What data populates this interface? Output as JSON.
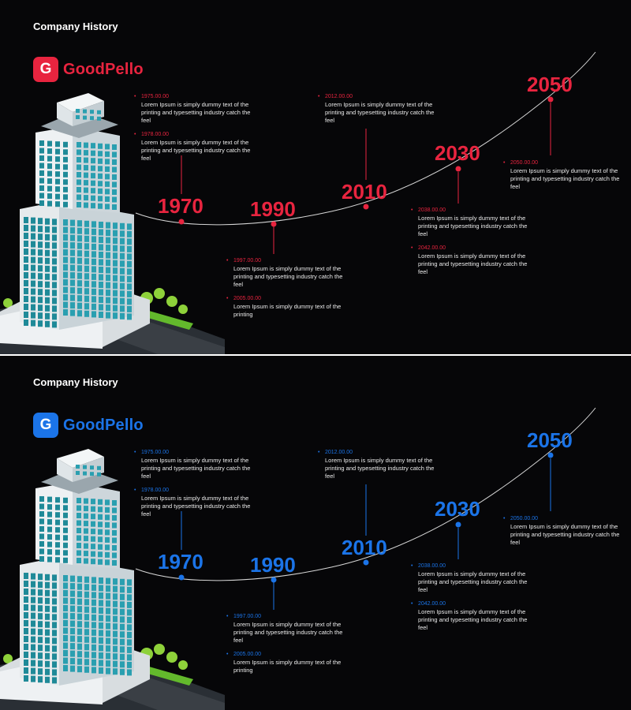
{
  "slides": [
    {
      "title": "Company History",
      "accent": "#e8243f",
      "logo": {
        "mark": "G",
        "name": "GoodPello"
      },
      "years": [
        "1970",
        "1990",
        "2010",
        "2030",
        "2050"
      ],
      "notes": [
        {
          "date": "1975.00.00",
          "text": "Lorem Ipsum is simply dummy text of the printing and typesetting industry catch the feel"
        },
        {
          "date": "1978.00.00",
          "text": "Lorem Ipsum is simply dummy text of the printing and typesetting industry catch the feel"
        },
        {
          "date": "1997.00.00",
          "text": "Lorem Ipsum is simply dummy text of the printing and typesetting industry catch the feel"
        },
        {
          "date": "2005.00.00",
          "text": "Lorem Ipsum is simply dummy text of the printing"
        },
        {
          "date": "2012.00.00",
          "text": "Lorem Ipsum is simply dummy text of the printing and typesetting industry catch the feel"
        },
        {
          "date": "2038.00.00",
          "text": "Lorem Ipsum is simply dummy text of the printing and typesetting industry catch the feel"
        },
        {
          "date": "2042.00.00",
          "text": "Lorem Ipsum is simply dummy text of the printing and typesetting industry catch the feel"
        },
        {
          "date": "2050.00.00",
          "text": "Lorem Ipsum is simply dummy text of the printing and typesetting industry catch the feel"
        }
      ]
    },
    {
      "title": "Company History",
      "accent": "#1b74e8",
      "logo": {
        "mark": "G",
        "name": "GoodPello"
      },
      "years": [
        "1970",
        "1990",
        "2010",
        "2030",
        "2050"
      ],
      "notes": [
        {
          "date": "1975.00.00",
          "text": "Lorem Ipsum is simply dummy text of the printing and typesetting industry catch the feel"
        },
        {
          "date": "1978.00.00",
          "text": "Lorem Ipsum is simply dummy text of the printing and typesetting industry catch the feel"
        },
        {
          "date": "1997.00.00",
          "text": "Lorem Ipsum is simply dummy text of the printing and typesetting industry catch the feel"
        },
        {
          "date": "2005.00.00",
          "text": "Lorem Ipsum is simply dummy text of the printing"
        },
        {
          "date": "2012.00.00",
          "text": "Lorem Ipsum is simply dummy text of the printing and typesetting industry catch the feel"
        },
        {
          "date": "2038.00.00",
          "text": "Lorem Ipsum is simply dummy text of the printing and typesetting industry catch the feel"
        },
        {
          "date": "2042.00.00",
          "text": "Lorem Ipsum is simply dummy text of the printing and typesetting industry catch the feel"
        },
        {
          "date": "2050.00.00",
          "text": "Lorem Ipsum is simply dummy text of the printing and typesetting industry catch the feel"
        }
      ]
    }
  ]
}
